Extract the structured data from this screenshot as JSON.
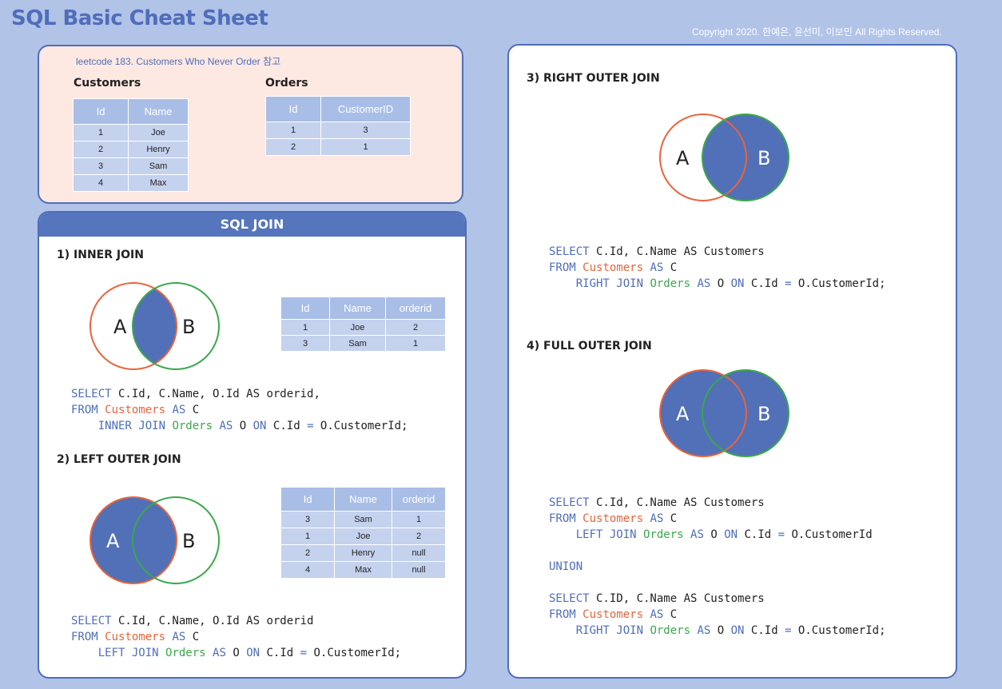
{
  "title": "SQL Basic Cheat Sheet",
  "copyright": "Copyright 2020. 한예은, 윤선미, 이보민 All Rights Reserved.",
  "reference": {
    "note": "leetcode 183. Customers Who Never Order 참고",
    "customers": {
      "title": "Customers",
      "headers": [
        "Id",
        "Name"
      ],
      "rows": [
        [
          "1",
          "Joe"
        ],
        [
          "2",
          "Henry"
        ],
        [
          "3",
          "Sam"
        ],
        [
          "4",
          "Max"
        ]
      ]
    },
    "orders": {
      "title": "Orders",
      "headers": [
        "Id",
        "CustomerID"
      ],
      "rows": [
        [
          "1",
          "3"
        ],
        [
          "2",
          "1"
        ]
      ]
    }
  },
  "join_section": {
    "header": "SQL JOIN",
    "inner": {
      "title": "1) INNER JOIN",
      "venn": {
        "left": "A",
        "right": "B"
      },
      "result": {
        "headers": [
          "Id",
          "Name",
          "orderid"
        ],
        "rows": [
          [
            "1",
            "Joe",
            "2"
          ],
          [
            "3",
            "Sam",
            "1"
          ]
        ]
      },
      "code": {
        "select_kw": "SELECT",
        "select_cols": " C.Id, C.Name, O.Id AS orderid,",
        "from_kw": "FROM",
        "from_table": "Customers",
        "as_kw": "AS",
        "alias": " C",
        "join_kw": "INNER JOIN",
        "join_table": "Orders",
        "as_kw2": "AS",
        "alias2": " O ",
        "on_kw": "ON",
        "cond_a": " C.Id ",
        "eq": "=",
        "cond_b": " O.CustomerId;"
      }
    },
    "left": {
      "title": "2) LEFT OUTER JOIN",
      "venn": {
        "left": "A",
        "right": "B"
      },
      "result": {
        "headers": [
          "Id",
          "Name",
          "orderid"
        ],
        "rows": [
          [
            "3",
            "Sam",
            "1"
          ],
          [
            "1",
            "Joe",
            "2"
          ],
          [
            "2",
            "Henry",
            "null"
          ],
          [
            "4",
            "Max",
            "null"
          ]
        ]
      },
      "code": {
        "select_kw": "SELECT",
        "select_cols": " C.Id, C.Name, O.Id AS orderid",
        "from_kw": "FROM",
        "from_table": "Customers",
        "as_kw": "AS",
        "alias": " C",
        "join_kw": "LEFT JOIN",
        "join_table": "Orders",
        "as_kw2": "AS",
        "alias2": " O ",
        "on_kw": "ON",
        "cond_a": " C.Id ",
        "eq": "=",
        "cond_b": " O.CustomerId;"
      }
    }
  },
  "right_panel": {
    "right": {
      "title": "3) RIGHT OUTER JOIN",
      "venn": {
        "left": "A",
        "right": "B"
      },
      "code": {
        "select_kw": "SELECT",
        "select_cols": " C.Id, C.Name AS Customers",
        "from_kw": "FROM",
        "from_table": "Customers",
        "as_kw": "AS",
        "alias": " C",
        "join_kw": "RIGHT JOIN",
        "join_table": "Orders",
        "as_kw2": "AS",
        "alias2": " O ",
        "on_kw": "ON",
        "cond_a": " C.Id ",
        "eq": "=",
        "cond_b": " O.CustomerId;"
      }
    },
    "full": {
      "title": "4) FULL OUTER JOIN",
      "venn": {
        "left": "A",
        "right": "B"
      },
      "code1": {
        "select_kw": "SELECT",
        "select_cols": " C.Id, C.Name AS Customers",
        "from_kw": "FROM",
        "from_table": "Customers",
        "as_kw": "AS",
        "alias": " C",
        "join_kw": "LEFT JOIN",
        "join_table": "Orders",
        "as_kw2": "AS",
        "alias2": " O ",
        "on_kw": "ON",
        "cond_a": " C.Id ",
        "eq": "=",
        "cond_b": " O.CustomerId"
      },
      "union_kw": "UNION",
      "code2": {
        "select_kw": "SELECT",
        "select_cols": " C.ID, C.Name AS Customers",
        "from_kw": "FROM",
        "from_table": "Customers",
        "as_kw": "AS",
        "alias": " C",
        "join_kw": "RIGHT JOIN",
        "join_table": "Orders",
        "as_kw2": "AS",
        "alias2": " O ",
        "on_kw": "ON",
        "cond_a": " C.Id ",
        "eq": "=",
        "cond_b": " O.CustomerId;"
      }
    }
  },
  "colors": {
    "brand_blue": "#4f6dba",
    "fill_blue": "#5170b8",
    "table_a_orange": "#e9643a",
    "table_b_green": "#3aa84a",
    "background": "#b1c3e7",
    "reference_bg": "#fde9e2"
  }
}
